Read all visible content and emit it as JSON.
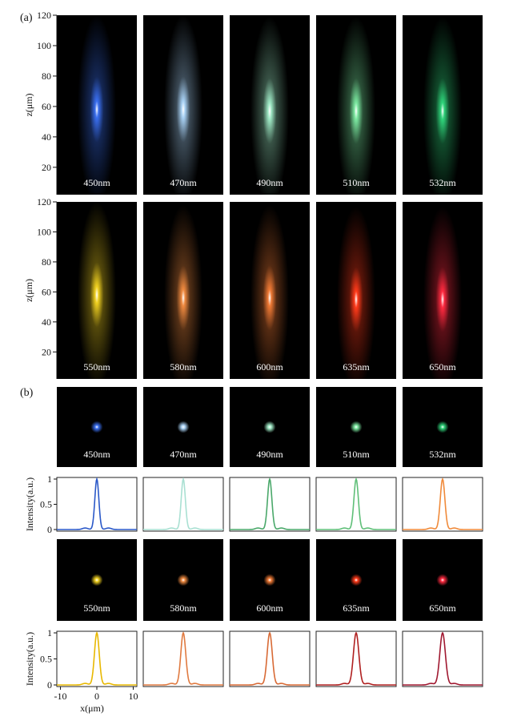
{
  "figure": {
    "panel_a_label": "(a)",
    "panel_b_label": "(b)"
  },
  "wavelengths_row1": [
    "450nm",
    "470nm",
    "490nm",
    "510nm",
    "532nm"
  ],
  "wavelengths_row2": [
    "550nm",
    "580nm",
    "600nm",
    "635nm",
    "650nm"
  ],
  "colors": {
    "450nm": "#3a6ff0",
    "470nm": "#a9d2f5",
    "490nm": "#9ee8c4",
    "510nm": "#7be8a0",
    "532nm": "#2fd37a",
    "550nm": "#f0d020",
    "580nm": "#f08a40",
    "600nm": "#f07a35",
    "635nm": "#ff3a1a",
    "650nm": "#ff2a40",
    "profile_450nm": "#2a58c8",
    "profile_470nm": "#a9e0d2",
    "profile_490nm": "#4aa86a",
    "profile_510nm": "#5fbf78",
    "profile_532nm": "#f08a3a",
    "profile_550nm": "#e8b800",
    "profile_580nm": "#e07a40",
    "profile_600nm": "#d86a35",
    "profile_635nm": "#b02020",
    "profile_650nm": "#a01830"
  },
  "chart_data": [
    {
      "type": "heatmap",
      "panel": "(a)",
      "ylabel": "z(μm)",
      "yticks": [
        20,
        40,
        60,
        80,
        100,
        120
      ],
      "ylim": [
        2,
        120
      ],
      "labels": [
        "450nm",
        "470nm",
        "490nm",
        "510nm",
        "532nm",
        "550nm",
        "580nm",
        "600nm",
        "635nm",
        "650nm"
      ],
      "focus_z": [
        58,
        58,
        57,
        57,
        57,
        58,
        56,
        56,
        55,
        55
      ]
    },
    {
      "type": "line",
      "panel": "(b)",
      "xlabel": "x(μm)",
      "ylabel": "Intensity(a.u.)",
      "xticks": [
        -10,
        0,
        10
      ],
      "yticks": [
        "0",
        "0.5",
        "1"
      ],
      "xlim": [
        -11,
        11
      ],
      "ylim": [
        0,
        1
      ],
      "labels": [
        "450nm",
        "470nm",
        "490nm",
        "510nm",
        "532nm",
        "550nm",
        "580nm",
        "600nm",
        "635nm",
        "650nm"
      ],
      "fwhm": [
        1.3,
        1.35,
        1.4,
        1.45,
        1.5,
        1.55,
        1.6,
        1.65,
        1.75,
        1.8
      ]
    }
  ]
}
